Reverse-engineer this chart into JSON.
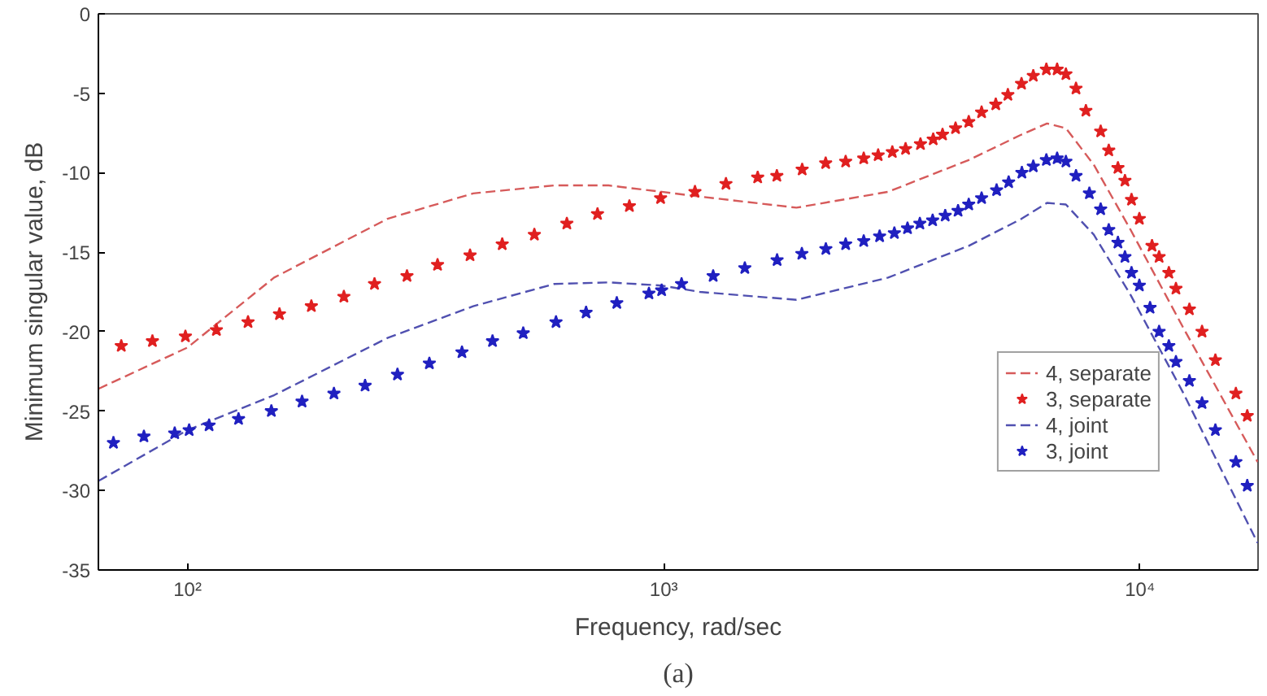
{
  "chart_data": {
    "type": "line",
    "xlabel": "Frequency, rad/sec",
    "ylabel": "Minimum singular value, dB",
    "log": "x",
    "xlim": [
      65,
      17700
    ],
    "ylim": [
      -35,
      0
    ],
    "xticks": [
      {
        "value": 100,
        "label": "10²"
      },
      {
        "value": 1000,
        "label": "10³"
      },
      {
        "value": 10000,
        "label": "10⁴"
      }
    ],
    "yticks": [
      -35,
      -30,
      -25,
      -20,
      -15,
      -10,
      -5,
      0
    ],
    "grid": false,
    "legend": "bottom right",
    "annotations": [
      "(a)"
    ],
    "series": [
      {
        "name": "4, separate",
        "line_style": "dashed",
        "color": "#d65a5a",
        "x": [
          65,
          100,
          152,
          263,
          398,
          589,
          766,
          990,
          1190,
          1900,
          2960,
          4370,
          5640,
          6380,
          6990,
          8000,
          9560,
          12300,
          17660
        ],
        "values": [
          -23.6,
          -21.0,
          -16.6,
          -12.9,
          -11.3,
          -10.8,
          -10.8,
          -11.2,
          -11.5,
          -12.2,
          -11.2,
          -9.2,
          -7.6,
          -6.9,
          -7.2,
          -9.5,
          -13.6,
          -19.7,
          -28.2
        ]
      },
      {
        "name": "3, separate",
        "type": "scatter",
        "marker": "star",
        "color": "#e02020",
        "x": [
          72.6,
          84.4,
          99,
          115,
          134,
          156,
          182,
          213,
          247,
          289,
          335,
          392,
          458,
          535,
          626,
          726,
          847,
          985,
          1163,
          1351,
          1575,
          1728,
          1953,
          2188,
          2410,
          2630,
          2820,
          3020,
          3220,
          3460,
          3680,
          3850,
          4100,
          4370,
          4650,
          4980,
          5280,
          5640,
          5970,
          6360,
          6700,
          6990,
          7340,
          7700,
          8270,
          8600,
          8990,
          9300,
          9600,
          9970,
          10600,
          10970,
          11500,
          11900,
          12700,
          13500,
          14400,
          15900,
          16800
        ],
        "values": [
          -20.9,
          -20.6,
          -20.3,
          -19.9,
          -19.4,
          -18.9,
          -18.4,
          -17.8,
          -17.0,
          -16.5,
          -15.8,
          -15.2,
          -14.5,
          -13.9,
          -13.2,
          -12.6,
          -12.1,
          -11.6,
          -11.2,
          -10.7,
          -10.3,
          -10.2,
          -9.8,
          -9.4,
          -9.3,
          -9.1,
          -8.9,
          -8.7,
          -8.5,
          -8.2,
          -7.9,
          -7.6,
          -7.2,
          -6.8,
          -6.2,
          -5.7,
          -5.1,
          -4.4,
          -3.9,
          -3.5,
          -3.5,
          -3.8,
          -4.7,
          -6.1,
          -7.4,
          -8.6,
          -9.7,
          -10.5,
          -11.7,
          -12.9,
          -14.6,
          -15.3,
          -16.3,
          -17.3,
          -18.6,
          -20.0,
          -21.8,
          -23.9,
          -25.3
        ]
      },
      {
        "name": "4, joint",
        "line_style": "dashed",
        "color": "#5050b0",
        "x": [
          65,
          100,
          152,
          263,
          398,
          589,
          766,
          990,
          1190,
          1900,
          2960,
          4370,
          5640,
          6380,
          6990,
          8000,
          9560,
          12300,
          17660
        ],
        "values": [
          -29.4,
          -26.2,
          -24.0,
          -20.4,
          -18.4,
          -17.0,
          -16.9,
          -17.1,
          -17.5,
          -18.0,
          -16.6,
          -14.6,
          -12.9,
          -11.9,
          -12.0,
          -13.9,
          -17.7,
          -23.8,
          -33.3
        ]
      },
      {
        "name": "3, joint",
        "type": "scatter",
        "marker": "star",
        "color": "#2020c0",
        "x": [
          69.9,
          81,
          94,
          100.8,
          111,
          128,
          150,
          174,
          203,
          236,
          276,
          322,
          377,
          437,
          507,
          594,
          687,
          797,
          931,
          990,
          1090,
          1270,
          1480,
          1730,
          1950,
          2190,
          2410,
          2630,
          2840,
          3050,
          3250,
          3450,
          3670,
          3900,
          4150,
          4370,
          4650,
          5000,
          5300,
          5650,
          5970,
          6360,
          6700,
          6990,
          7340,
          7830,
          8270,
          8600,
          8990,
          9300,
          9600,
          9970,
          10500,
          10970,
          11500,
          11900,
          12700,
          13500,
          14400,
          15900,
          16800
        ],
        "values": [
          -27.0,
          -26.6,
          -26.4,
          -26.2,
          -25.9,
          -25.5,
          -25.0,
          -24.4,
          -23.9,
          -23.4,
          -22.7,
          -22.0,
          -21.3,
          -20.6,
          -20.1,
          -19.4,
          -18.8,
          -18.2,
          -17.6,
          -17.4,
          -17.0,
          -16.5,
          -16.0,
          -15.5,
          -15.1,
          -14.8,
          -14.5,
          -14.3,
          -14.0,
          -13.8,
          -13.5,
          -13.2,
          -13.0,
          -12.7,
          -12.4,
          -12.0,
          -11.6,
          -11.1,
          -10.6,
          -10.0,
          -9.6,
          -9.2,
          -9.1,
          -9.3,
          -10.2,
          -11.3,
          -12.3,
          -13.6,
          -14.4,
          -15.3,
          -16.3,
          -17.1,
          -18.5,
          -20.0,
          -20.9,
          -21.9,
          -23.1,
          -24.5,
          -26.2,
          -28.2,
          -29.7
        ]
      }
    ]
  }
}
